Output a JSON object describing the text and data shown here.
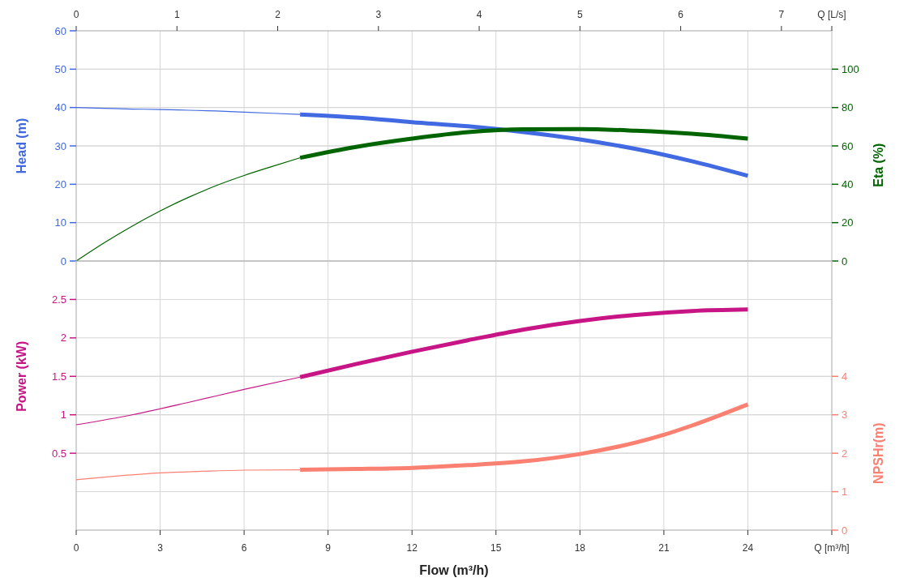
{
  "chart_data": [
    {
      "type": "line",
      "ylabel": "Head (m)",
      "y2label": "Eta (%)",
      "xlim": [
        0,
        27
      ],
      "xticks": [
        0,
        3,
        6,
        9,
        12,
        15,
        18,
        21,
        24
      ],
      "x2lim": [
        0,
        7.5
      ],
      "x2ticks": [
        0,
        1,
        2,
        3,
        4,
        5,
        6,
        7,
        {
          "value": 7.5,
          "label": "Q [L/s]"
        }
      ],
      "ylim": [
        0,
        60
      ],
      "yticks": [
        0,
        10,
        20,
        30,
        40,
        50,
        60
      ],
      "y2lim": [
        0,
        120
      ],
      "y2ticks": [
        0,
        20,
        40,
        60,
        80,
        100
      ],
      "tick_labels": "y",
      "grid": true,
      "series": [
        {
          "color": "#4169e1",
          "x": [
            0,
            1,
            2,
            3,
            4,
            5,
            6,
            7,
            8
          ],
          "values": [
            40,
            39.8,
            39.6,
            39.5,
            39.3,
            39.1,
            38.8,
            38.5,
            38.2
          ]
        },
        {
          "color": "#4169e1",
          "x": [
            8,
            10,
            12,
            14,
            16,
            18,
            20,
            22,
            24
          ],
          "values": [
            38.2,
            37.4,
            36.2,
            35.1,
            33.6,
            31.7,
            29.2,
            26.0,
            22.2
          ]
        },
        {
          "color": "#006400",
          "axis": "y2",
          "x": [
            0,
            1,
            2,
            3,
            4,
            5,
            6,
            7,
            8
          ],
          "values": [
            0,
            9.5,
            18.2,
            26.1,
            33.1,
            39.3,
            44.6,
            49.3,
            53.8
          ]
        },
        {
          "color": "#006400",
          "axis": "y2",
          "x": [
            8,
            10,
            12,
            14,
            16,
            18,
            20,
            22,
            24
          ],
          "values": [
            53.8,
            59.5,
            63.8,
            67.2,
            68.7,
            68.8,
            67.9,
            66.3,
            63.8
          ]
        }
      ]
    },
    {
      "type": "line",
      "xlabel": "Flow (m³/h)",
      "ylabel": "Power (kW)",
      "y2label": "NPSHr(m)",
      "xlim": [
        0,
        27
      ],
      "xticks": [
        0,
        3,
        6,
        9,
        12,
        15,
        18,
        21,
        24,
        {
          "value": 27,
          "label": "Q [m³/h]"
        }
      ],
      "ylim": [
        -0.5,
        3
      ],
      "yticks": [
        0.5,
        1,
        1.5,
        2,
        2.5
      ],
      "y2lim": [
        0,
        7
      ],
      "y2ticks": [
        0,
        1,
        2,
        3,
        4
      ],
      "grid": true,
      "series": [
        {
          "color": "#c71585",
          "x": [
            0,
            2,
            4,
            6,
            8
          ],
          "values": [
            0.87,
            1.0,
            1.16,
            1.33,
            1.49
          ]
        },
        {
          "color": "#c71585",
          "x": [
            8,
            10,
            12,
            14,
            16,
            18,
            20,
            22,
            24
          ],
          "values": [
            1.49,
            1.66,
            1.82,
            1.97,
            2.11,
            2.22,
            2.3,
            2.35,
            2.37
          ]
        },
        {
          "color": "#fa8072",
          "axis": "y2",
          "x": [
            0,
            1.5,
            3,
            4.5,
            6,
            8
          ],
          "values": [
            1.31,
            1.41,
            1.49,
            1.53,
            1.56,
            1.57
          ]
        },
        {
          "color": "#fa8072",
          "axis": "y2",
          "x": [
            8,
            10,
            12,
            14,
            16,
            18,
            20,
            21,
            22,
            24
          ],
          "values": [
            1.57,
            1.59,
            1.62,
            1.69,
            1.79,
            1.98,
            2.28,
            2.48,
            2.72,
            3.27
          ]
        }
      ]
    }
  ]
}
